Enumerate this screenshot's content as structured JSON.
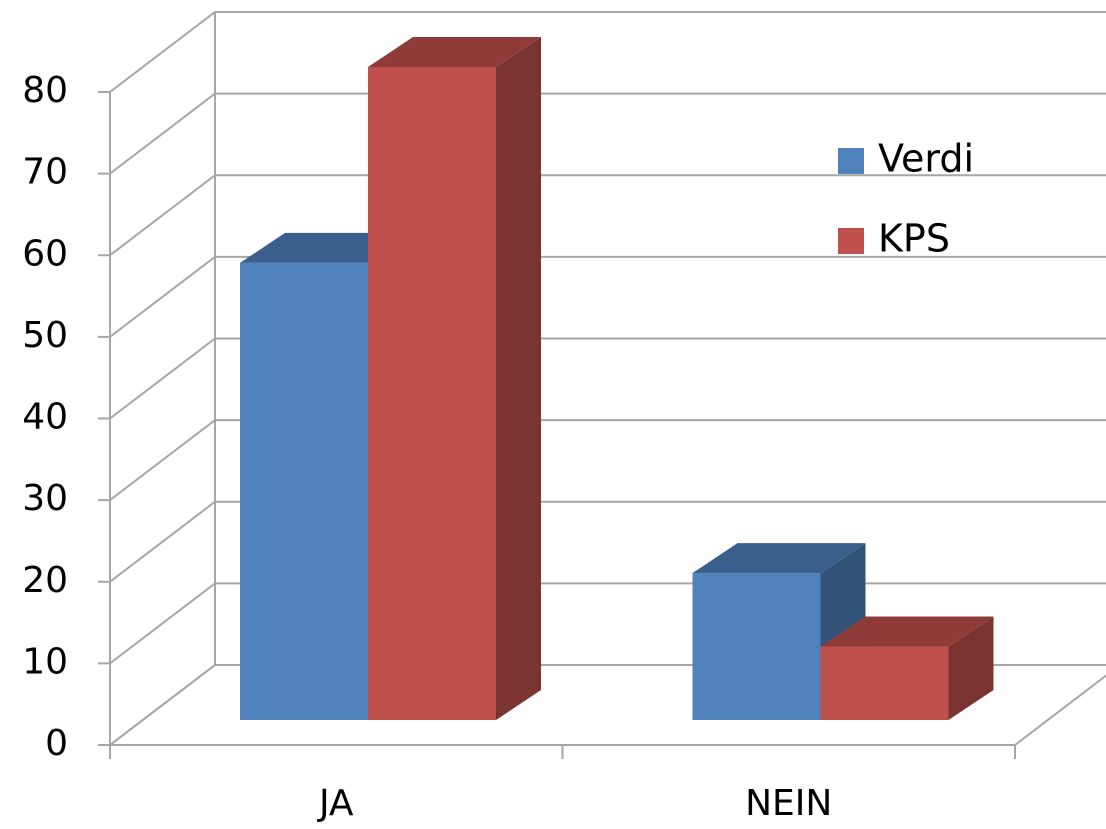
{
  "chart_data": {
    "type": "bar3d",
    "categories": [
      "JA",
      "NEIN"
    ],
    "series": [
      {
        "name": "Verdi",
        "color": "#4f81bd",
        "values": [
          56,
          18
        ]
      },
      {
        "name": "KPS",
        "color": "#c0504d",
        "values": [
          80,
          9
        ]
      }
    ],
    "ylim": [
      0,
      80
    ],
    "yticks": [
      0,
      10,
      20,
      30,
      40,
      50,
      60,
      70,
      80
    ],
    "grid": true,
    "legend": "right"
  }
}
